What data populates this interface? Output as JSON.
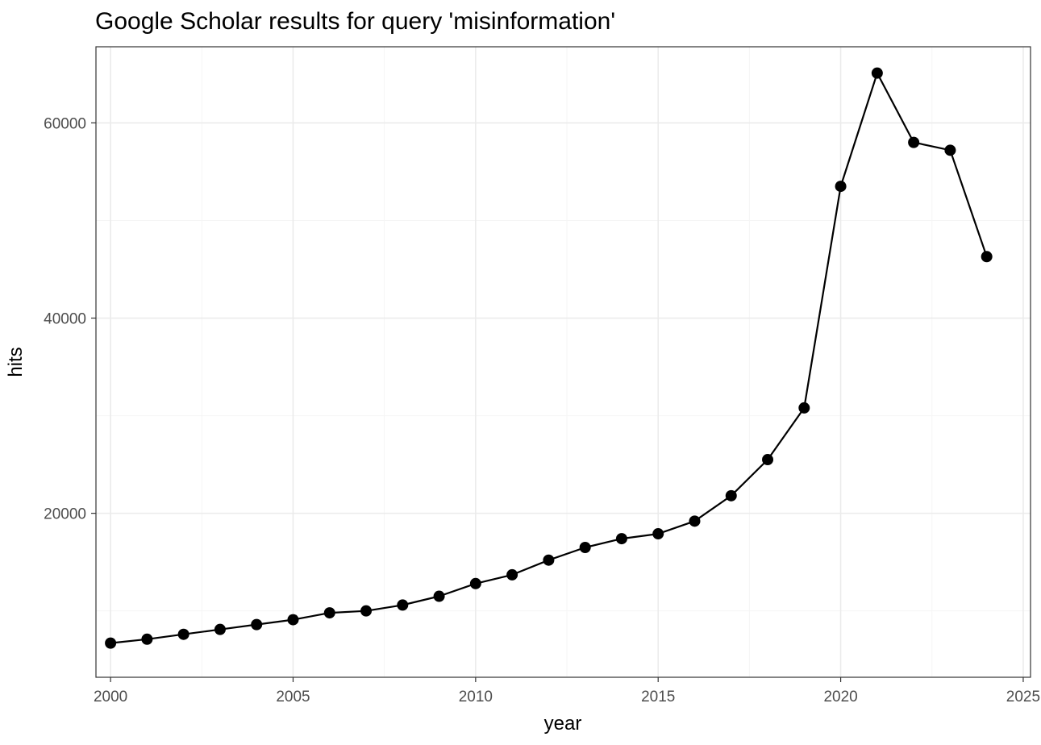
{
  "chart_data": {
    "type": "line",
    "title": "Google Scholar results for query 'misinformation'",
    "xlabel": "year",
    "ylabel": "hits",
    "x": [
      2000,
      2001,
      2002,
      2003,
      2004,
      2005,
      2006,
      2007,
      2008,
      2009,
      2010,
      2011,
      2012,
      2013,
      2014,
      2015,
      2016,
      2017,
      2018,
      2019,
      2020,
      2021,
      2022,
      2023,
      2024
    ],
    "series": [
      {
        "values": [
          6700,
          7100,
          7600,
          8100,
          8600,
          9100,
          9800,
          10000,
          10600,
          11500,
          12800,
          13700,
          15200,
          16500,
          17400,
          17900,
          19200,
          21800,
          25500,
          30800,
          53500,
          65100,
          58000,
          57200,
          46300
        ]
      }
    ],
    "xlim": [
      1999.6,
      2025.2
    ],
    "ylim": [
      3200,
      67800
    ],
    "x_ticks": [
      2000,
      2005,
      2010,
      2015,
      2020,
      2025
    ],
    "x_tick_labels": [
      "2000",
      "2005",
      "2010",
      "2015",
      "2020",
      "2025"
    ],
    "y_ticks": [
      20000,
      40000,
      60000
    ],
    "y_tick_labels": [
      "20000",
      "40000",
      "60000"
    ],
    "grid": true,
    "legend": "none",
    "colors": {
      "line": "#000000",
      "point": "#000000",
      "grid_major": "#ebebeb",
      "grid_minor": "#f5f5f5",
      "panel_border": "#333333",
      "tick_label": "#4d4d4d"
    }
  }
}
